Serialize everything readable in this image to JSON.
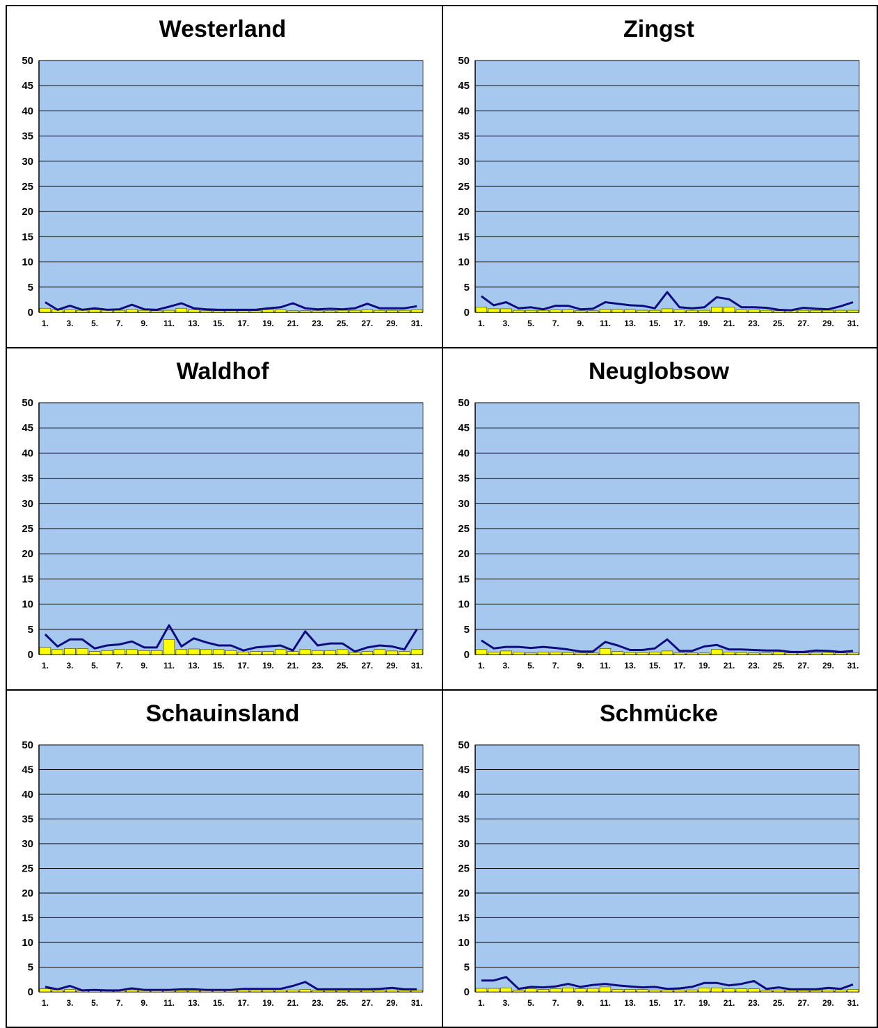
{
  "colors": {
    "plot_bg": "#a7c8ee",
    "bar": "#ffff00",
    "bar_stroke": "#333300",
    "line": "#0d0d80",
    "grid": "#000000"
  },
  "chart_data": [
    {
      "type": "bar+line",
      "title": "Westerland",
      "ylim": [
        0,
        50
      ],
      "yticks": [
        "0",
        "5",
        "10",
        "15",
        "20",
        "25",
        "30",
        "35",
        "40",
        "45",
        "50"
      ],
      "x_tick_labels": [
        "1.",
        "3.",
        "5.",
        "7.",
        "9.",
        "11.",
        "13.",
        "15.",
        "17.",
        "19.",
        "21.",
        "23.",
        "25.",
        "27.",
        "29.",
        "31."
      ],
      "grid": true,
      "bars": [
        0.8,
        0.5,
        0.5,
        0.4,
        0.5,
        0.4,
        0.4,
        0.6,
        0.4,
        0.3,
        0.4,
        0.8,
        0.5,
        0.3,
        0.3,
        0.3,
        0.3,
        0.3,
        0.5,
        0.5,
        0.3,
        0.3,
        0.3,
        0.3,
        0.4,
        0.4,
        0.5,
        0.4,
        0.4,
        0.4,
        0.5
      ],
      "line": [
        2.0,
        0.5,
        1.3,
        0.5,
        0.8,
        0.5,
        0.6,
        1.5,
        0.6,
        0.5,
        1.1,
        1.8,
        0.8,
        0.6,
        0.5,
        0.5,
        0.5,
        0.5,
        0.8,
        1.0,
        1.8,
        0.8,
        0.6,
        0.7,
        0.6,
        0.8,
        1.7,
        0.8,
        0.8,
        0.8,
        1.2
      ]
    },
    {
      "type": "bar+line",
      "title": "Zingst",
      "ylim": [
        0,
        50
      ],
      "yticks": [
        "0",
        "5",
        "10",
        "15",
        "20",
        "25",
        "30",
        "35",
        "40",
        "45",
        "50"
      ],
      "x_tick_labels": [
        "1.",
        "3.",
        "5.",
        "7.",
        "9.",
        "11.",
        "13.",
        "15.",
        "17.",
        "19.",
        "21.",
        "23.",
        "25.",
        "27.",
        "29.",
        "31."
      ],
      "grid": true,
      "bars": [
        1.0,
        0.7,
        0.7,
        0.4,
        0.4,
        0.4,
        0.5,
        0.5,
        0.3,
        0.3,
        0.6,
        0.6,
        0.5,
        0.4,
        0.4,
        0.7,
        0.5,
        0.4,
        0.4,
        1.0,
        1.0,
        0.5,
        0.5,
        0.4,
        0.3,
        0.4,
        0.4,
        0.4,
        0.4,
        0.4,
        0.4
      ],
      "line": [
        3.2,
        1.4,
        2.0,
        0.8,
        1.0,
        0.6,
        1.3,
        1.3,
        0.6,
        0.7,
        2.0,
        1.7,
        1.4,
        1.3,
        0.8,
        4.0,
        1.0,
        0.8,
        1.0,
        3.0,
        2.6,
        1.0,
        1.0,
        0.9,
        0.5,
        0.4,
        0.9,
        0.7,
        0.6,
        1.2,
        2.0
      ]
    },
    {
      "type": "bar+line",
      "title": "Waldhof",
      "ylim": [
        0,
        50
      ],
      "yticks": [
        "0",
        "5",
        "10",
        "15",
        "20",
        "25",
        "30",
        "35",
        "40",
        "45",
        "50"
      ],
      "x_tick_labels": [
        "1.",
        "3.",
        "5.",
        "7.",
        "9.",
        "11.",
        "13.",
        "15.",
        "17.",
        "19.",
        "21.",
        "23.",
        "25.",
        "27.",
        "29.",
        "31."
      ],
      "grid": true,
      "bars": [
        1.4,
        1.0,
        1.2,
        1.2,
        0.6,
        0.8,
        1.0,
        1.0,
        0.8,
        0.8,
        3.0,
        1.0,
        1.1,
        1.0,
        1.0,
        0.8,
        0.5,
        0.6,
        0.6,
        1.0,
        0.6,
        1.0,
        0.8,
        0.8,
        1.0,
        0.4,
        0.6,
        1.0,
        0.7,
        0.6,
        1.0
      ],
      "line": [
        4.0,
        1.6,
        3.0,
        3.0,
        1.2,
        1.8,
        2.0,
        2.6,
        1.4,
        1.4,
        5.8,
        1.6,
        3.2,
        2.4,
        1.8,
        1.8,
        0.8,
        1.4,
        1.6,
        1.8,
        0.8,
        4.6,
        1.8,
        2.2,
        2.2,
        0.6,
        1.4,
        1.8,
        1.6,
        1.0,
        5.0
      ]
    },
    {
      "type": "bar+line",
      "title": "Neuglobsow",
      "ylim": [
        0,
        50
      ],
      "yticks": [
        "0",
        "5",
        "10",
        "15",
        "20",
        "25",
        "30",
        "35",
        "40",
        "45",
        "50"
      ],
      "x_tick_labels": [
        "1.",
        "3.",
        "5.",
        "7.",
        "9.",
        "11.",
        "13.",
        "15.",
        "17.",
        "19.",
        "21.",
        "23.",
        "25.",
        "27.",
        "29.",
        "31."
      ],
      "grid": true,
      "bars": [
        1.0,
        0.5,
        0.7,
        0.5,
        0.3,
        0.5,
        0.5,
        0.4,
        0.3,
        0.3,
        1.2,
        0.6,
        0.4,
        0.4,
        0.5,
        0.7,
        0.3,
        0.3,
        0.3,
        1.0,
        0.5,
        0.4,
        0.3,
        0.3,
        0.5,
        0.3,
        0.3,
        0.3,
        0.4,
        0.3,
        0.3
      ],
      "line": [
        2.8,
        1.2,
        1.5,
        1.5,
        1.3,
        1.5,
        1.3,
        1.0,
        0.6,
        0.6,
        2.5,
        1.8,
        0.9,
        0.9,
        1.2,
        3.0,
        0.7,
        0.7,
        1.6,
        1.9,
        1.0,
        1.0,
        0.9,
        0.8,
        0.8,
        0.5,
        0.5,
        0.8,
        0.7,
        0.5,
        0.7
      ]
    },
    {
      "type": "bar+line",
      "title": "Schauinsland",
      "ylim": [
        0,
        50
      ],
      "yticks": [
        "0",
        "5",
        "10",
        "15",
        "20",
        "25",
        "30",
        "35",
        "40",
        "45",
        "50"
      ],
      "x_tick_labels": [
        "1.",
        "3.",
        "5.",
        "7.",
        "9.",
        "11.",
        "13.",
        "15.",
        "17.",
        "19.",
        "21.",
        "23.",
        "25.",
        "27.",
        "29.",
        "31."
      ],
      "grid": true,
      "bars": [
        0.6,
        0.4,
        0.5,
        0.2,
        0.3,
        0.3,
        0.3,
        0.4,
        0.3,
        0.3,
        0.3,
        0.3,
        0.3,
        0.3,
        0.3,
        0.3,
        0.4,
        0.4,
        0.4,
        0.4,
        0.4,
        0.5,
        0.3,
        0.3,
        0.3,
        0.3,
        0.3,
        0.3,
        0.4,
        0.3,
        0.3
      ],
      "line": [
        1.0,
        0.5,
        1.2,
        0.3,
        0.4,
        0.3,
        0.3,
        0.7,
        0.4,
        0.4,
        0.4,
        0.5,
        0.5,
        0.4,
        0.4,
        0.4,
        0.6,
        0.6,
        0.6,
        0.6,
        1.2,
        2.0,
        0.5,
        0.5,
        0.5,
        0.5,
        0.5,
        0.6,
        0.8,
        0.5,
        0.5
      ]
    },
    {
      "type": "bar+line",
      "title": "Schmücke",
      "ylim": [
        0,
        50
      ],
      "yticks": [
        "0",
        "5",
        "10",
        "15",
        "20",
        "25",
        "30",
        "35",
        "40",
        "45",
        "50"
      ],
      "x_tick_labels": [
        "1.",
        "3.",
        "5.",
        "7.",
        "9.",
        "11.",
        "13.",
        "15.",
        "17.",
        "19.",
        "21.",
        "23.",
        "25.",
        "27.",
        "29.",
        "31."
      ],
      "grid": true,
      "bars": [
        0.7,
        0.7,
        0.8,
        0.3,
        0.6,
        0.5,
        0.6,
        0.8,
        0.6,
        0.7,
        1.0,
        0.5,
        0.5,
        0.5,
        0.4,
        0.4,
        0.4,
        0.4,
        0.8,
        0.8,
        0.6,
        0.6,
        0.6,
        0.3,
        0.4,
        0.3,
        0.3,
        0.3,
        0.4,
        0.4,
        0.5
      ],
      "line": [
        2.3,
        2.3,
        3.0,
        0.6,
        1.0,
        0.9,
        1.1,
        1.6,
        1.0,
        1.4,
        1.6,
        1.3,
        1.1,
        0.9,
        1.0,
        0.6,
        0.7,
        1.0,
        1.8,
        1.8,
        1.3,
        1.6,
        2.2,
        0.6,
        0.9,
        0.5,
        0.5,
        0.5,
        0.8,
        0.6,
        1.5
      ]
    }
  ]
}
